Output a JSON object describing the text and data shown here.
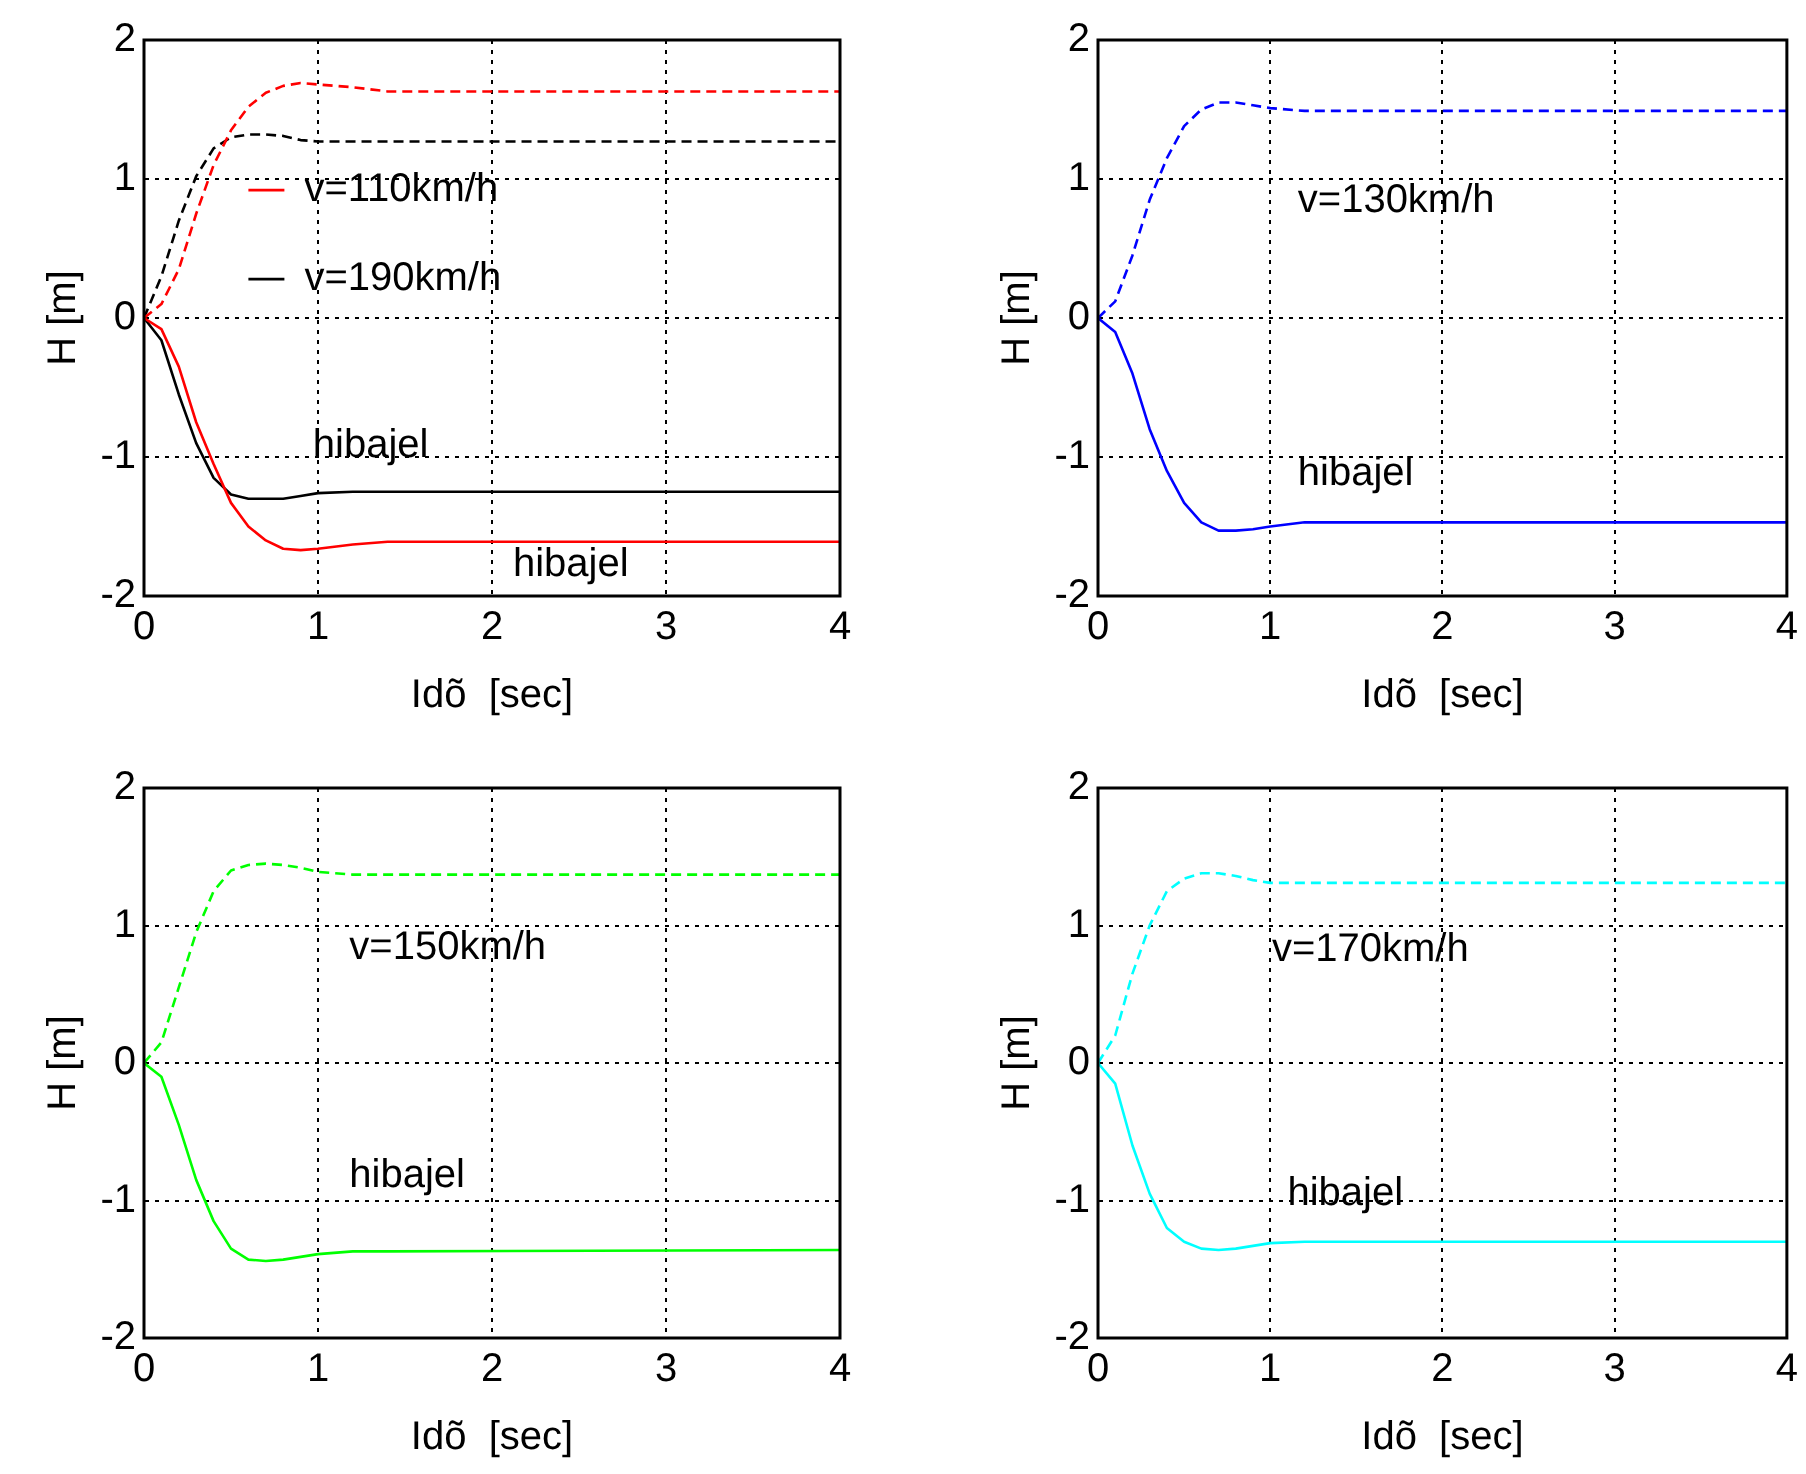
{
  "chart_data": [
    {
      "type": "line",
      "xlabel": "Idõ  [sec]",
      "ylabel": "H [m]",
      "xlim": [
        0,
        4
      ],
      "xticks": [
        0,
        1,
        2,
        3,
        4
      ],
      "ylim": [
        -2,
        2
      ],
      "yticks": [
        -2,
        -1,
        0,
        1,
        2
      ],
      "grid": true,
      "legend": "top left",
      "marker": "none",
      "x": [
        0,
        0.1,
        0.2,
        0.3,
        0.4,
        0.5,
        0.6,
        0.7,
        0.8,
        0.9,
        1.0,
        1.2,
        1.4,
        4
      ],
      "series": [
        {
          "name": "v=110km/h",
          "color": "#ff0000",
          "line_style": "solid",
          "values": [
            0,
            -0.08,
            -0.35,
            -0.75,
            -1.05,
            -1.33,
            -1.5,
            -1.6,
            -1.66,
            -1.67,
            -1.66,
            -1.63,
            -1.61,
            -1.61
          ]
        },
        {
          "name": "v=190km/h",
          "color": "#000000",
          "line_style": "solid",
          "values": [
            0,
            -0.16,
            -0.55,
            -0.9,
            -1.15,
            -1.27,
            -1.3,
            -1.3,
            -1.3,
            -1.28,
            -1.26,
            -1.25,
            -1.25,
            -1.25
          ]
        },
        {
          "color": "#ff0000",
          "line_style": "dashed",
          "values": [
            0,
            0.1,
            0.35,
            0.75,
            1.1,
            1.35,
            1.52,
            1.62,
            1.67,
            1.69,
            1.68,
            1.66,
            1.63,
            1.63
          ]
        },
        {
          "color": "#000000",
          "line_style": "dashed",
          "values": [
            0,
            0.3,
            0.7,
            1.02,
            1.22,
            1.3,
            1.32,
            1.32,
            1.31,
            1.28,
            1.27,
            1.27,
            1.27,
            1.27
          ]
        }
      ],
      "annotations": [
        "hibajel",
        "hibajel"
      ]
    },
    {
      "type": "line",
      "xlabel": "Idõ  [sec]",
      "ylabel": "H [m]",
      "xlim": [
        0,
        4
      ],
      "xticks": [
        0,
        1,
        2,
        3,
        4
      ],
      "ylim": [
        -2,
        2
      ],
      "yticks": [
        -2,
        -1,
        0,
        1,
        2
      ],
      "grid": true,
      "marker": "none",
      "x": [
        0,
        0.1,
        0.2,
        0.3,
        0.4,
        0.5,
        0.6,
        0.7,
        0.8,
        0.9,
        1.0,
        1.2,
        1.4,
        4
      ],
      "series": [
        {
          "color": "#0000ff",
          "line_style": "dashed",
          "values": [
            0,
            0.12,
            0.45,
            0.85,
            1.15,
            1.38,
            1.5,
            1.55,
            1.55,
            1.53,
            1.51,
            1.49,
            1.49,
            1.49
          ]
        },
        {
          "color": "#0000ff",
          "line_style": "solid",
          "values": [
            0,
            -0.1,
            -0.4,
            -0.8,
            -1.1,
            -1.33,
            -1.47,
            -1.53,
            -1.53,
            -1.52,
            -1.5,
            -1.47,
            -1.47,
            -1.47
          ]
        }
      ],
      "annotations": [
        "v=130km/h",
        "hibajel"
      ]
    },
    {
      "type": "line",
      "xlabel": "Idõ  [sec]",
      "ylabel": "H [m]",
      "xlim": [
        0,
        4
      ],
      "xticks": [
        0,
        1,
        2,
        3,
        4
      ],
      "ylim": [
        -2,
        2
      ],
      "yticks": [
        -2,
        -1,
        0,
        1,
        2
      ],
      "grid": true,
      "marker": "none",
      "x": [
        0,
        0.1,
        0.2,
        0.3,
        0.4,
        0.5,
        0.6,
        0.7,
        0.8,
        0.9,
        1.0,
        1.2,
        1.4,
        4
      ],
      "series": [
        {
          "color": "#00ff00",
          "line_style": "dashed",
          "values": [
            0,
            0.15,
            0.55,
            0.95,
            1.25,
            1.4,
            1.44,
            1.45,
            1.44,
            1.42,
            1.39,
            1.37,
            1.37,
            1.37
          ]
        },
        {
          "color": "#00ff00",
          "line_style": "solid",
          "values": [
            0,
            -0.1,
            -0.45,
            -0.85,
            -1.15,
            -1.35,
            -1.43,
            -1.44,
            -1.43,
            -1.41,
            -1.39,
            -1.37,
            -1.37,
            -1.36
          ]
        }
      ],
      "annotations": [
        "v=150km/h",
        "hibajel"
      ]
    },
    {
      "type": "line",
      "xlabel": "Idõ  [sec]",
      "ylabel": "H [m]",
      "xlim": [
        0,
        4
      ],
      "xticks": [
        0,
        1,
        2,
        3,
        4
      ],
      "ylim": [
        -2,
        2
      ],
      "yticks": [
        -2,
        -1,
        0,
        1,
        2
      ],
      "grid": true,
      "marker": "none",
      "x": [
        0,
        0.1,
        0.2,
        0.3,
        0.4,
        0.5,
        0.6,
        0.7,
        0.8,
        0.9,
        1.0,
        1.2,
        1.4,
        4
      ],
      "series": [
        {
          "color": "#00ffff",
          "line_style": "dashed",
          "values": [
            0,
            0.2,
            0.65,
            1.0,
            1.25,
            1.34,
            1.38,
            1.38,
            1.36,
            1.33,
            1.31,
            1.31,
            1.31,
            1.31
          ]
        },
        {
          "color": "#00ffff",
          "line_style": "solid",
          "values": [
            0,
            -0.15,
            -0.6,
            -0.95,
            -1.2,
            -1.3,
            -1.35,
            -1.36,
            -1.35,
            -1.33,
            -1.31,
            -1.3,
            -1.3,
            -1.3
          ]
        }
      ],
      "annotations": [
        "v=170km/h",
        "hibajel"
      ]
    }
  ]
}
